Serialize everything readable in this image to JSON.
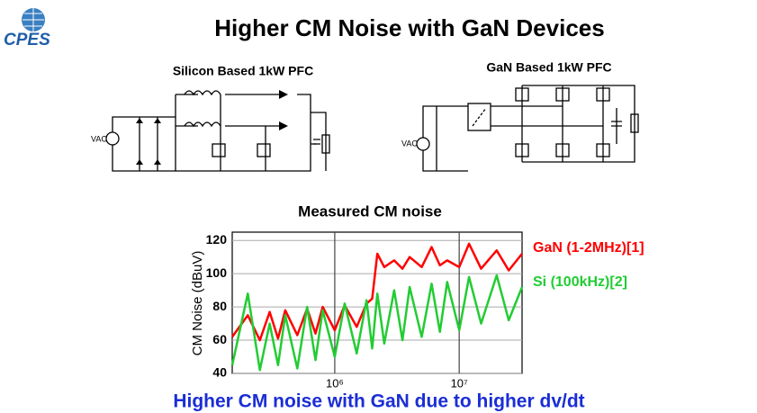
{
  "header": {
    "title": "Higher CM Noise with GaN Devices",
    "logo": "CPES"
  },
  "circuits": [
    {
      "title": "Silicon Based 1kW PFC",
      "source_label": "VAC"
    },
    {
      "title": "GaN Based 1kW PFC",
      "source_label": "VAC"
    }
  ],
  "chart_data": {
    "type": "line",
    "title": "Measured CM noise",
    "ylabel": "CM Noise (dBuV)",
    "log_x": true,
    "grid": true,
    "legend": "right",
    "x": [
      150000,
      200000,
      250000,
      300000,
      350000,
      400000,
      500000,
      600000,
      700000,
      800000,
      1000000,
      1200000,
      1500000,
      1800000,
      2000000,
      2200000,
      2500000,
      3000000,
      3500000,
      4000000,
      5000000,
      6000000,
      7000000,
      8000000,
      10000000,
      12000000,
      15000000,
      20000000,
      25000000,
      32000000
    ],
    "series": [
      {
        "name": "GaN (1-2MHz)[1]",
        "color": "#ff0000",
        "values": [
          62,
          75,
          60,
          77,
          61,
          78,
          63,
          79,
          64,
          80,
          66,
          81,
          68,
          82,
          85,
          112,
          104,
          108,
          103,
          110,
          104,
          116,
          105,
          108,
          104,
          118,
          103,
          114,
          102,
          112
        ]
      },
      {
        "name": "Si (100kHz)[2]",
        "color": "#22cc33",
        "values": [
          45,
          88,
          42,
          70,
          45,
          75,
          43,
          80,
          48,
          78,
          50,
          82,
          52,
          84,
          55,
          88,
          58,
          90,
          60,
          92,
          62,
          94,
          65,
          95,
          66,
          98,
          70,
          99,
          72,
          92
        ]
      }
    ],
    "xlim": [
      150000,
      32000000
    ],
    "xticks": [
      {
        "value": 1000000,
        "label": "10⁶"
      },
      {
        "value": 10000000,
        "label": "10⁷"
      }
    ],
    "ylim": [
      40,
      125
    ],
    "yticks": [
      40,
      60,
      80,
      100,
      120
    ]
  },
  "footer": "Higher CM noise with GaN due to higher dv/dt"
}
